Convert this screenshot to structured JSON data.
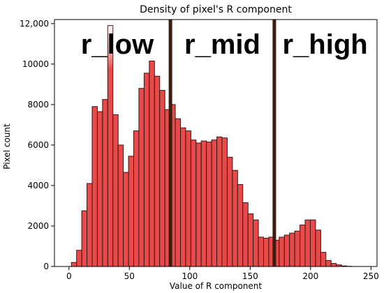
{
  "chart_data": {
    "type": "bar",
    "title": "Density of pixel's R component",
    "xlabel": "Value of R component",
    "ylabel": "Pixel count",
    "xlim": [
      -12,
      255
    ],
    "ylim": [
      0,
      12200
    ],
    "xticks": [
      0,
      50,
      100,
      150,
      200,
      250
    ],
    "xtick_labels": [
      "0",
      "50",
      "100",
      "150",
      "200",
      "250"
    ],
    "yticks": [
      0,
      2000,
      4000,
      6000,
      8000,
      10000,
      12000
    ],
    "ytick_labels": [
      "0",
      "2000",
      "4000",
      "6000",
      "8000",
      "10000",
      "12,000"
    ],
    "bin_width": 4.3,
    "bin_starts": [
      2,
      6.3,
      10.6,
      14.9,
      19.2,
      23.5,
      27.8,
      32.1,
      36.4,
      40.7,
      45.0,
      49.3,
      53.6,
      57.9,
      62.2,
      66.5,
      70.8,
      75.1,
      79.4,
      83.7,
      88.0,
      92.3,
      96.6,
      100.9,
      105.2,
      109.5,
      113.8,
      118.1,
      122.4,
      126.7,
      131.0,
      135.3,
      139.6,
      143.9,
      148.2,
      152.5,
      156.8,
      161.1,
      165.4,
      169.7,
      174.0,
      178.3,
      182.6,
      186.9,
      191.2,
      195.5,
      199.8,
      204.1,
      208.4,
      212.7,
      217.0,
      221.3,
      225.6,
      229.9
    ],
    "values": [
      200,
      800,
      2750,
      4100,
      7900,
      7650,
      8250,
      11900,
      7500,
      6000,
      4650,
      5450,
      6700,
      8800,
      9550,
      10150,
      9400,
      8700,
      7750,
      8000,
      7300,
      6850,
      6700,
      6250,
      6100,
      6200,
      6150,
      6250,
      6400,
      6350,
      5400,
      4750,
      4050,
      3150,
      2600,
      2300,
      1450,
      1400,
      1450,
      1300,
      1450,
      1550,
      1650,
      1750,
      2050,
      2300,
      2300,
      1800,
      700,
      300,
      150,
      80,
      30,
      10
    ],
    "bar_color": "#e84a4a",
    "bar_edge": "#3a1414",
    "highlight": {
      "bin_index": 7,
      "color": "#ffffff"
    },
    "dividers": [
      {
        "x": 84
      },
      {
        "x": 170
      }
    ],
    "divider_color": "#3b1d0f",
    "regions": [
      {
        "label": "r_low",
        "x": 40
      },
      {
        "label": "r_mid",
        "x": 127
      },
      {
        "label": "r_high",
        "x": 212
      }
    ],
    "grid": false,
    "legend": "none"
  }
}
